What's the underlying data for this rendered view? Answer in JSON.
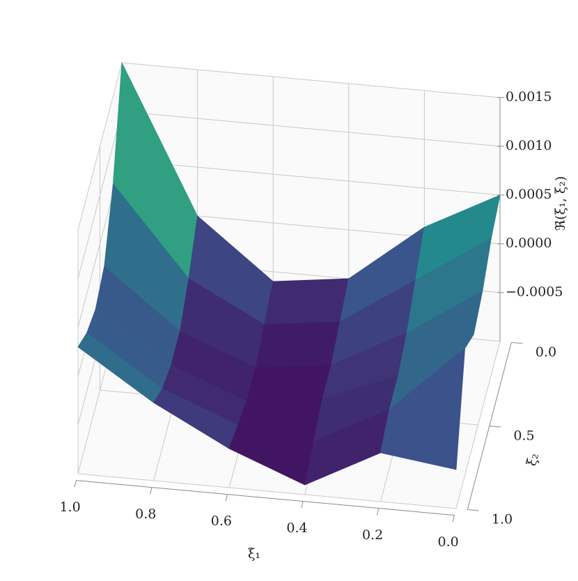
{
  "chart_data": {
    "type": "surface",
    "colormap": "viridis",
    "xlabel": "ξ₁",
    "ylabel": "ξ₂",
    "zlabel": "ℜ(ξ₁, ξ₂)",
    "x": [
      0,
      0.2,
      0.4,
      0.6,
      0.8,
      1
    ],
    "y": [
      0,
      0.2,
      0.4,
      0.6,
      0.8,
      1
    ],
    "z": [
      [
        0.0005,
        0.0001,
        -0.0005,
        -0.0006,
        0.0,
        0.0015
      ],
      [
        0.0004,
        -0.0001,
        -0.0006,
        -0.0007,
        -0.0003,
        0.0006
      ],
      [
        0.0002,
        -0.0003,
        -0.0007,
        -0.0008,
        -0.0005,
        0.0001
      ],
      [
        0.0001,
        -0.0004,
        -0.0007,
        -0.0008,
        -0.0005,
        0.0
      ],
      [
        0.0003,
        -0.0004,
        -0.0008,
        -0.0007,
        -0.0004,
        0.0001
      ],
      [
        -0.0006,
        -0.0005,
        -0.0009,
        -0.0006,
        -0.0002,
        0.0003
      ]
    ],
    "xlim": [
      0,
      1
    ],
    "ylim": [
      0,
      1
    ],
    "zlim": [
      -0.001,
      0.0015
    ],
    "xticks": [
      {
        "value": 0,
        "label": "0.0"
      },
      0.2,
      0.4,
      0.6,
      0.8,
      {
        "value": 1,
        "label": "1.0"
      }
    ],
    "yticks": [
      {
        "value": 0,
        "label": "0.0"
      },
      0.5,
      {
        "value": 1,
        "label": "1.0"
      }
    ],
    "zticks": [
      {
        "value": -0.0005,
        "label": "−0.0005"
      },
      {
        "value": 0,
        "label": "0.0000"
      },
      0.0005,
      {
        "value": 0.001,
        "label": "0.0010"
      },
      0.0015
    ],
    "grid": true
  }
}
